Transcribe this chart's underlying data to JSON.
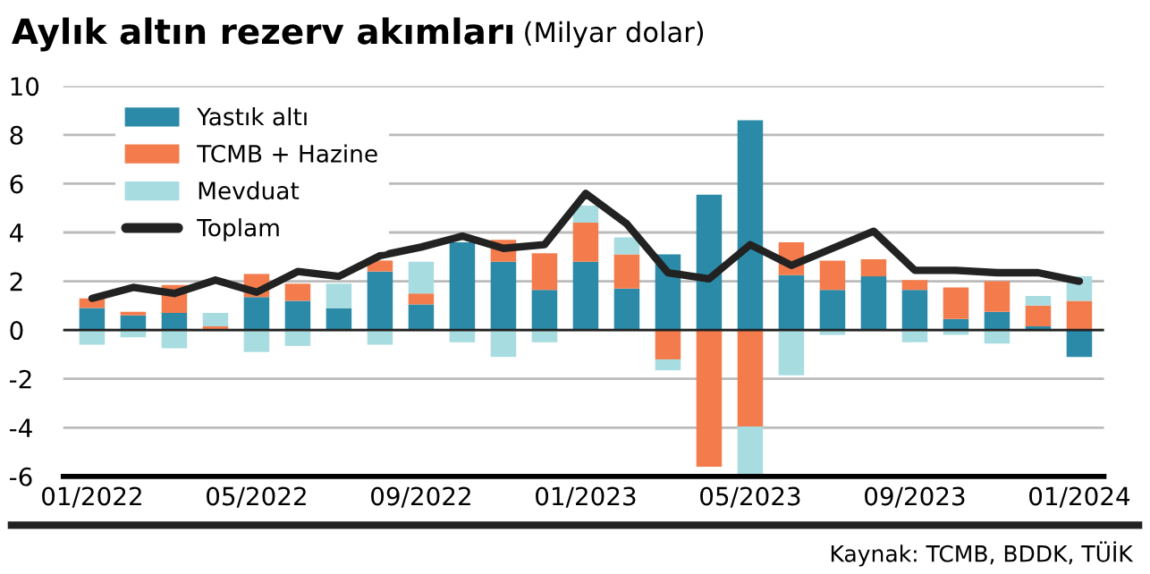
{
  "chart_data": {
    "type": "bar",
    "stacked": true,
    "title": "Aylık altın rezerv akımları",
    "subtitle": "(Milyar dolar)",
    "categories": [
      "01/2022",
      null,
      null,
      null,
      "05/2022",
      null,
      null,
      null,
      "09/2022",
      null,
      null,
      null,
      "01/2023",
      null,
      null,
      null,
      "05/2023",
      null,
      null,
      null,
      "09/2023",
      null,
      null,
      null,
      "01/2024"
    ],
    "series": [
      {
        "name": "Yastık altı",
        "color": "#2a8aa8",
        "values": [
          0.9,
          0.6,
          0.7,
          0,
          1.35,
          1.2,
          0.9,
          2.4,
          1.05,
          3.6,
          2.8,
          1.65,
          2.8,
          1.7,
          3.1,
          5.55,
          8.6,
          2.25,
          1.65,
          2.2,
          1.65,
          0.45,
          0.75,
          0.15,
          -1.1
        ]
      },
      {
        "name": "TCMB + Hazine",
        "color": "#f47c4c",
        "values": [
          0.4,
          0.15,
          1.15,
          0.15,
          0.95,
          0.7,
          0,
          0.45,
          0.45,
          0,
          0.9,
          1.5,
          1.6,
          1.4,
          -1.2,
          -5.6,
          -3.95,
          1.35,
          1.2,
          0.7,
          0.4,
          1.3,
          1.25,
          0.85,
          1.2
        ]
      },
      {
        "name": "Mevduat",
        "color": "#a7dce0",
        "values": [
          -0.6,
          -0.3,
          -0.75,
          0.55,
          -0.9,
          -0.65,
          1.0,
          -0.6,
          1.3,
          -0.5,
          -1.1,
          -0.5,
          0.7,
          0.7,
          -0.45,
          0,
          -2.0,
          -1.85,
          -0.2,
          0,
          -0.5,
          -0.2,
          -0.55,
          0.4,
          1.0
        ]
      },
      {
        "name": "Toplam",
        "type": "line",
        "color": "#222222",
        "values": [
          1.3,
          1.75,
          1.5,
          2.05,
          1.55,
          2.4,
          2.2,
          3.05,
          3.4,
          3.85,
          3.35,
          3.5,
          5.6,
          4.35,
          2.35,
          2.1,
          3.5,
          2.65,
          3.35,
          4.05,
          2.45,
          2.45,
          2.35,
          2.35,
          2.0
        ]
      }
    ],
    "ylim": [
      -6,
      10
    ],
    "yticks": [
      -6,
      -4,
      -2,
      0,
      2,
      4,
      6,
      8,
      10
    ],
    "grid": "y",
    "legend": "top left",
    "annotations": [
      "Kaynak: TCMB, BDDK, TÜİK"
    ]
  }
}
